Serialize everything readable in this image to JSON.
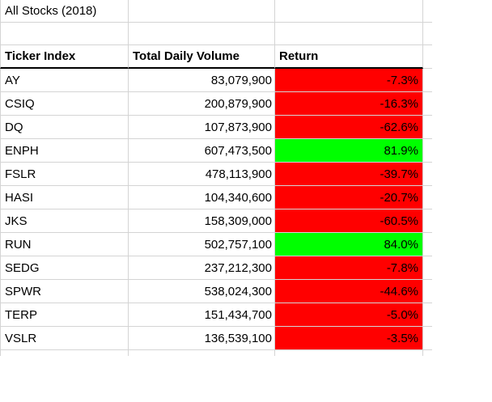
{
  "sheet": {
    "title": "All Stocks (2018)",
    "headers": {
      "ticker": "Ticker Index",
      "volume": "Total Daily Volume",
      "return": "Return"
    },
    "rows": [
      {
        "ticker": "AY",
        "volume": "83,079,900",
        "return": "-7.3%",
        "return_bg": "#ff0000"
      },
      {
        "ticker": "CSIQ",
        "volume": "200,879,900",
        "return": "-16.3%",
        "return_bg": "#ff0000"
      },
      {
        "ticker": "DQ",
        "volume": "107,873,900",
        "return": "-62.6%",
        "return_bg": "#ff0000"
      },
      {
        "ticker": "ENPH",
        "volume": "607,473,500",
        "return": "81.9%",
        "return_bg": "#00ff00"
      },
      {
        "ticker": "FSLR",
        "volume": "478,113,900",
        "return": "-39.7%",
        "return_bg": "#ff0000"
      },
      {
        "ticker": "HASI",
        "volume": "104,340,600",
        "return": "-20.7%",
        "return_bg": "#ff0000"
      },
      {
        "ticker": "JKS",
        "volume": "158,309,000",
        "return": "-60.5%",
        "return_bg": "#ff0000"
      },
      {
        "ticker": "RUN",
        "volume": "502,757,100",
        "return": "84.0%",
        "return_bg": "#00ff00"
      },
      {
        "ticker": "SEDG",
        "volume": "237,212,300",
        "return": "-7.8%",
        "return_bg": "#ff0000"
      },
      {
        "ticker": "SPWR",
        "volume": "538,024,300",
        "return": "-44.6%",
        "return_bg": "#ff0000"
      },
      {
        "ticker": "TERP",
        "volume": "151,434,700",
        "return": "-5.0%",
        "return_bg": "#ff0000"
      },
      {
        "ticker": "VSLR",
        "volume": "136,539,100",
        "return": "-3.5%",
        "return_bg": "#ff0000"
      }
    ],
    "colors": {
      "negative_bg": "#ff0000",
      "positive_bg": "#00ff00",
      "gridline": "#d4d4d4",
      "header_border": "#000000",
      "text": "#000000",
      "background": "#ffffff"
    }
  }
}
